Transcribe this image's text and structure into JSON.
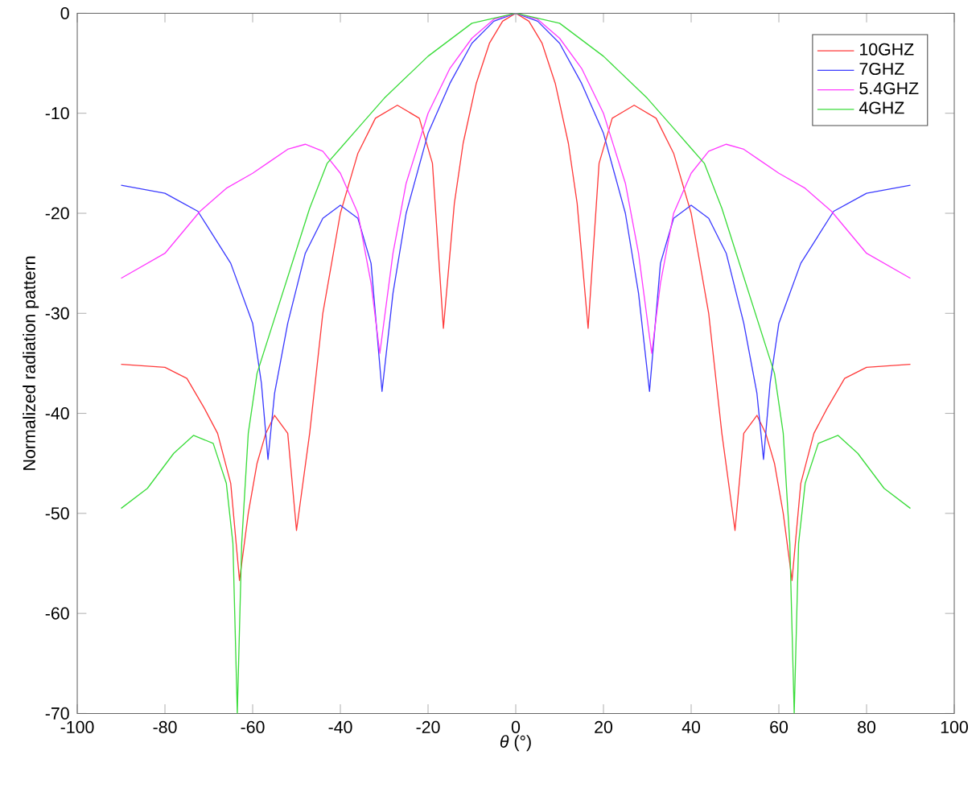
{
  "chart_data": {
    "type": "line",
    "xlabel": "*θ* (°)",
    "ylabel": "Normalized radiation pattern",
    "xlim": [
      -100,
      100
    ],
    "ylim": [
      -70,
      0
    ],
    "xticks": [
      -100,
      -80,
      -60,
      -40,
      -20,
      0,
      20,
      40,
      60,
      80,
      100
    ],
    "yticks": [
      -70,
      -60,
      -50,
      -40,
      -30,
      -20,
      -10,
      0
    ],
    "grid": false,
    "legend": "top right",
    "marker": "none",
    "line_style": "solid",
    "series": [
      {
        "name": "10GHZ",
        "color": "#ff3b3b",
        "x": [
          -90,
          -80,
          -75,
          -71,
          -68,
          -65,
          -63,
          -61,
          -59,
          -57,
          -55,
          -52,
          -50,
          -47,
          -44,
          -40,
          -36,
          -32,
          -27,
          -22,
          -19,
          -16.5,
          -14,
          -12,
          -9,
          -6,
          -3,
          0,
          3,
          6,
          9,
          12,
          14,
          16.5,
          19,
          22,
          27,
          32,
          36,
          40,
          44,
          47,
          50,
          52,
          55,
          57,
          59,
          61,
          63,
          65,
          68,
          71,
          75,
          80,
          90
        ],
        "values": [
          -35.1,
          -35.4,
          -36.5,
          -39.5,
          -42,
          -47,
          -56.7,
          -50,
          -45,
          -42,
          -40.2,
          -42,
          -51.7,
          -42,
          -30,
          -20,
          -14,
          -10.5,
          -9.2,
          -10.5,
          -15,
          -31.5,
          -19,
          -13,
          -7,
          -3,
          -0.8,
          0,
          -0.8,
          -3,
          -7,
          -13,
          -19,
          -31.5,
          -15,
          -10.5,
          -9.2,
          -10.5,
          -14,
          -20,
          -30,
          -42,
          -51.7,
          -42,
          -40.2,
          -42,
          -45,
          -50,
          -56.7,
          -47,
          -42,
          -39.5,
          -36.5,
          -35.4,
          -35.1
        ]
      },
      {
        "name": "7GHZ",
        "color": "#3b3bff",
        "x": [
          -90,
          -80,
          -72.5,
          -65,
          -60,
          -58,
          -56.5,
          -55,
          -52,
          -48,
          -44,
          -40,
          -36,
          -33,
          -30.5,
          -28,
          -25,
          -20,
          -15,
          -10,
          -5,
          0,
          5,
          10,
          15,
          20,
          25,
          28,
          30.5,
          33,
          36,
          40,
          44,
          48,
          52,
          55,
          56.5,
          58,
          60,
          65,
          72.5,
          80,
          90
        ],
        "values": [
          -17.2,
          -18,
          -19.8,
          -25,
          -31,
          -37,
          -44.6,
          -38,
          -31,
          -24,
          -20.5,
          -19.2,
          -20.5,
          -25,
          -37.8,
          -28,
          -20,
          -12,
          -7,
          -3,
          -0.8,
          0,
          -0.8,
          -3,
          -7,
          -12,
          -20,
          -28,
          -37.8,
          -25,
          -20.5,
          -19.2,
          -20.5,
          -24,
          -31,
          -38,
          -44.6,
          -37,
          -31,
          -25,
          -19.8,
          -18,
          -17.2
        ]
      },
      {
        "name": "5.4GHZ",
        "color": "#ff3bff",
        "x": [
          -90,
          -80,
          -72,
          -66,
          -60,
          -56,
          -52,
          -48,
          -44,
          -40,
          -36,
          -33,
          -31,
          -28,
          -25,
          -20,
          -15,
          -10,
          -5,
          0,
          5,
          10,
          15,
          20,
          25,
          28,
          31,
          33,
          36,
          40,
          44,
          48,
          52,
          56,
          60,
          66,
          72,
          80,
          90
        ],
        "values": [
          -26.5,
          -24,
          -19.8,
          -17.5,
          -16,
          -14.8,
          -13.6,
          -13.1,
          -13.8,
          -16,
          -20,
          -27,
          -34,
          -24,
          -17,
          -10,
          -5.5,
          -2.5,
          -0.6,
          0,
          -0.6,
          -2.5,
          -5.5,
          -10,
          -17,
          -24,
          -34,
          -27,
          -20,
          -16,
          -13.8,
          -13.1,
          -13.6,
          -14.8,
          -16,
          -17.5,
          -19.8,
          -24,
          -26.5
        ]
      },
      {
        "name": "4GHZ",
        "color": "#3bdc3b",
        "x": [
          -90,
          -84,
          -78,
          -73.5,
          -69,
          -66,
          -64.5,
          -63.5,
          -62.5,
          -61,
          -59,
          -55,
          -51,
          -47,
          -43,
          -40,
          -35,
          -30,
          -20,
          -10,
          0,
          10,
          20,
          30,
          35,
          40,
          43,
          47,
          51,
          55,
          59,
          61,
          62.5,
          63.5,
          64.5,
          66,
          69,
          73.5,
          78,
          84,
          90
        ],
        "values": [
          -49.5,
          -47.5,
          -44,
          -42.2,
          -43,
          -47,
          -53,
          -70,
          -53,
          -42,
          -36,
          -30.5,
          -25,
          -19.5,
          -15,
          -13.5,
          -11,
          -8.5,
          -4.3,
          -1,
          0,
          -1,
          -4.3,
          -8.5,
          -11,
          -13.5,
          -15,
          -19.5,
          -25,
          -30.5,
          -36,
          -42,
          -53,
          -70,
          -53,
          -47,
          -43,
          -42.2,
          -44,
          -47.5,
          -49.5
        ]
      }
    ]
  }
}
